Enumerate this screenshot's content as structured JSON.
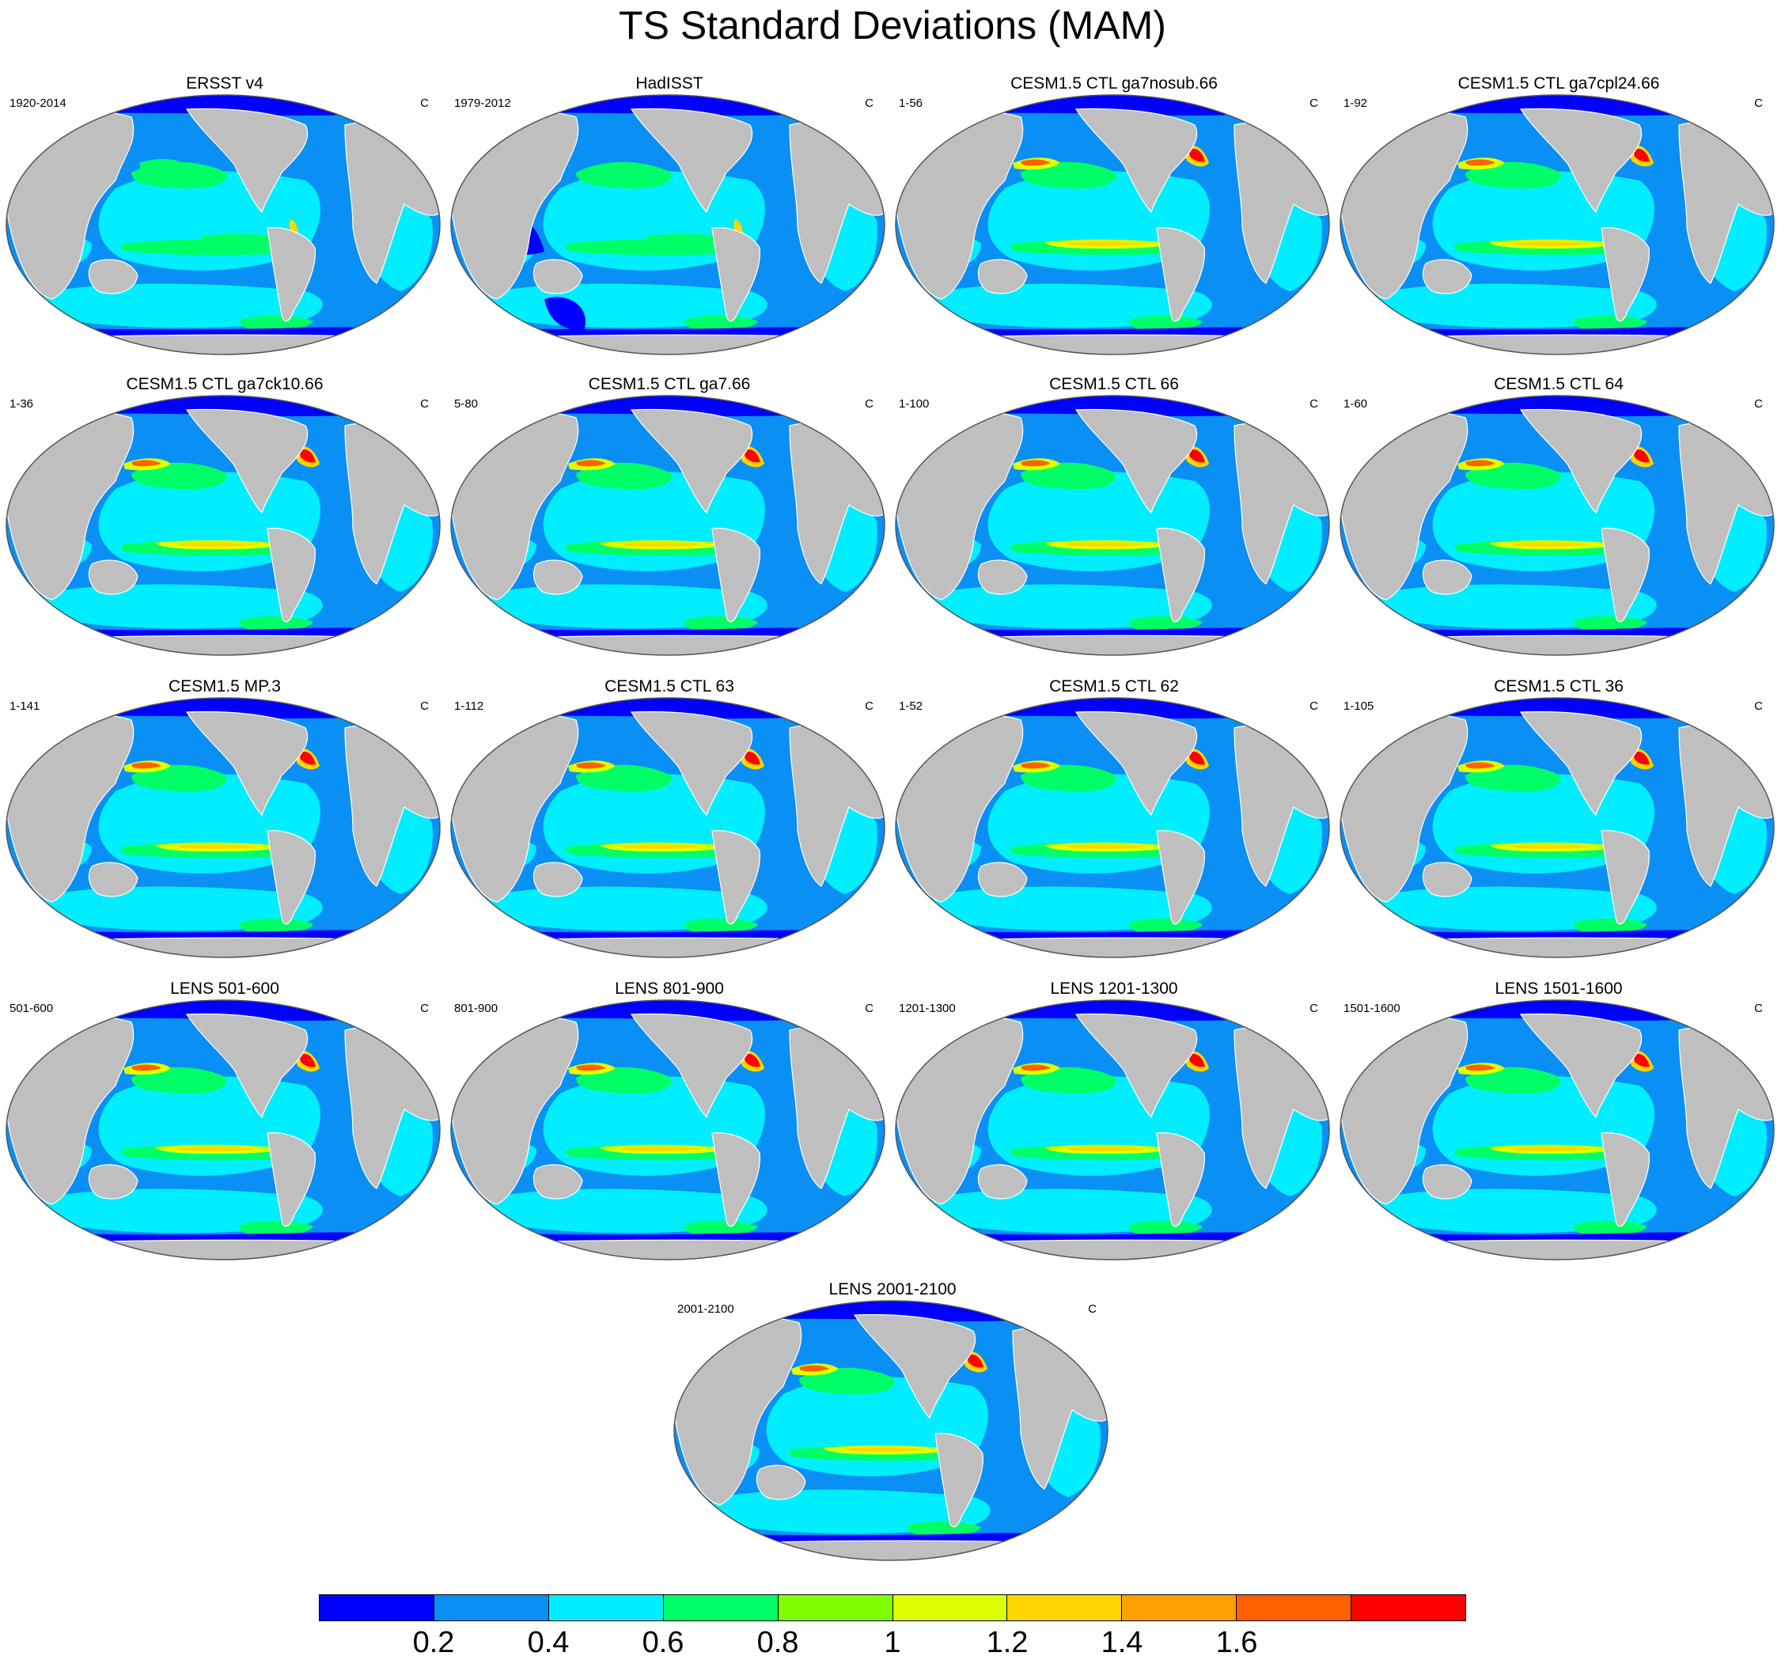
{
  "title": "TS Standard Deviations (MAM)",
  "colors": {
    "land": "#bfbfbf",
    "levels": [
      "#0000ff",
      "#0a8ff5",
      "#00eeff",
      "#00ff66",
      "#80ff00",
      "#ddff00",
      "#ffd500",
      "#ffa000",
      "#ff6000",
      "#ff0000"
    ],
    "coast": "#ffffff",
    "border": "#555555"
  },
  "colorbar": {
    "labels": [
      "0.2",
      "0.4",
      "0.6",
      "0.8",
      "1",
      "1.2",
      "1.4",
      "1.6"
    ]
  },
  "panels": [
    {
      "title": "ERSST v4",
      "left": "1920-2014",
      "right": "C",
      "variant": "obs1"
    },
    {
      "title": "HadISST",
      "left": "1979-2012",
      "right": "C",
      "variant": "obs2"
    },
    {
      "title": "CESM1.5 CTL ga7nosub.66",
      "left": "1-56",
      "right": "C",
      "variant": "model"
    },
    {
      "title": "CESM1.5 CTL ga7cpl24.66",
      "left": "1-92",
      "right": "C",
      "variant": "model"
    },
    {
      "title": "CESM1.5 CTL ga7ck10.66",
      "left": "1-36",
      "right": "C",
      "variant": "model"
    },
    {
      "title": "CESM1.5 CTL ga7.66",
      "left": "5-80",
      "right": "C",
      "variant": "model"
    },
    {
      "title": "CESM1.5 CTL 66",
      "left": "1-100",
      "right": "C",
      "variant": "model"
    },
    {
      "title": "CESM1.5 CTL 64",
      "left": "1-60",
      "right": "C",
      "variant": "model"
    },
    {
      "title": "CESM1.5 MP.3",
      "left": "1-141",
      "right": "C",
      "variant": "model"
    },
    {
      "title": "CESM1.5 CTL 63",
      "left": "1-112",
      "right": "C",
      "variant": "model"
    },
    {
      "title": "CESM1.5 CTL 62",
      "left": "1-52",
      "right": "C",
      "variant": "model"
    },
    {
      "title": "CESM1.5 CTL 36",
      "left": "1-105",
      "right": "C",
      "variant": "model"
    },
    {
      "title": "LENS 501-600",
      "left": "501-600",
      "right": "C",
      "variant": "lens"
    },
    {
      "title": "LENS 801-900",
      "left": "801-900",
      "right": "C",
      "variant": "lens"
    },
    {
      "title": "LENS 1201-1300",
      "left": "1201-1300",
      "right": "C",
      "variant": "lens"
    },
    {
      "title": "LENS 1501-1600",
      "left": "1501-1600",
      "right": "C",
      "variant": "lens"
    },
    {
      "title": "LENS 2001-2100",
      "left": "2001-2100",
      "right": "C",
      "variant": "lens"
    }
  ]
}
